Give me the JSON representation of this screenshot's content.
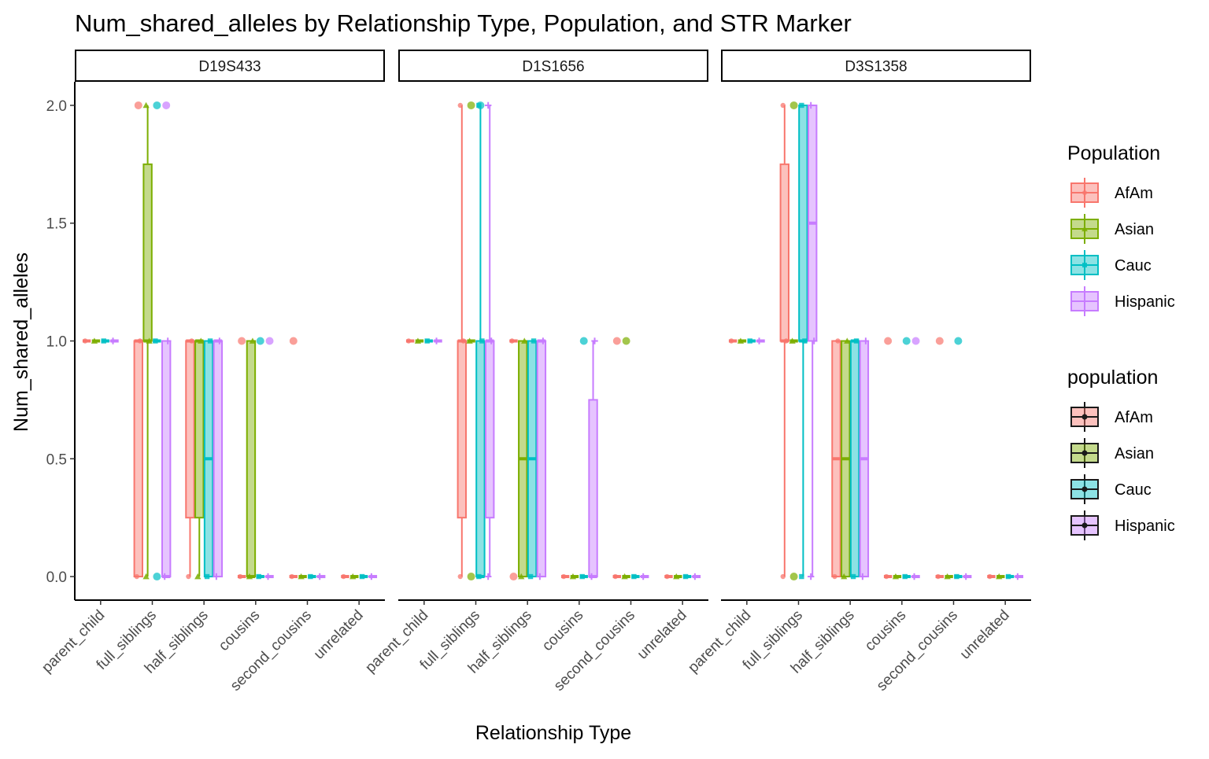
{
  "chart_data": {
    "type": "boxplot",
    "title": "Num_shared_alleles by Relationship Type, Population, and STR Marker",
    "xlabel": "Relationship Type",
    "ylabel": "Num_shared_alleles",
    "ylim": [
      -0.1,
      2.1
    ],
    "yticks": [
      0.0,
      0.5,
      1.0,
      1.5,
      2.0
    ],
    "ytick_labels": [
      "0.0",
      "0.5",
      "1.0",
      "1.5",
      "2.0"
    ],
    "categories": [
      "parent_child",
      "full_siblings",
      "half_siblings",
      "cousins",
      "second_cousins",
      "unrelated"
    ],
    "grid": false,
    "legend_placement": "right",
    "series": [
      {
        "name": "AfAm",
        "color": "#F8766D",
        "fill": "#F8766D",
        "shape": "circle"
      },
      {
        "name": "Asian",
        "color": "#7CAE00",
        "fill": "#7CAE00",
        "shape": "triangle"
      },
      {
        "name": "Cauc",
        "color": "#00BFC4",
        "fill": "#00BFC4",
        "shape": "square"
      },
      {
        "name": "Hispanic",
        "color": "#C77CFF",
        "fill": "#C77CFF",
        "shape": "plus"
      }
    ],
    "legends": [
      {
        "title": "Population",
        "labels": [
          "AfAm",
          "Asian",
          "Cauc",
          "Hispanic"
        ],
        "style": "colored"
      },
      {
        "title": "population",
        "labels": [
          "AfAm",
          "Asian",
          "Cauc",
          "Hispanic"
        ],
        "style": "black"
      }
    ],
    "panels": [
      {
        "strip": "D19S433",
        "boxes": [
          [
            [
              1,
              1,
              1,
              1,
              1
            ],
            [
              1,
              1,
              1,
              1,
              1
            ],
            [
              1,
              1,
              1,
              1,
              1
            ],
            [
              1,
              1,
              1,
              1,
              1
            ]
          ],
          [
            [
              0,
              0,
              1,
              1,
              1
            ],
            [
              0,
              1,
              1,
              1.75,
              2
            ],
            [
              1,
              1,
              1,
              1,
              1
            ],
            [
              0,
              0,
              0,
              1,
              1
            ]
          ],
          [
            [
              0,
              0.25,
              1,
              1,
              1
            ],
            [
              0,
              0.25,
              1,
              1,
              1
            ],
            [
              0,
              0,
              0.5,
              1,
              1
            ],
            [
              0,
              0,
              1,
              1,
              1
            ]
          ],
          [
            [
              0,
              0,
              0,
              0,
              0
            ],
            [
              0,
              0,
              0,
              1,
              1
            ],
            [
              0,
              0,
              0,
              0,
              0
            ],
            [
              0,
              0,
              0,
              0,
              0
            ]
          ],
          [
            [
              0,
              0,
              0,
              0,
              0
            ],
            [
              0,
              0,
              0,
              0,
              0
            ],
            [
              0,
              0,
              0,
              0,
              0
            ],
            [
              0,
              0,
              0,
              0,
              0
            ]
          ],
          [
            [
              0,
              0,
              0,
              0,
              0
            ],
            [
              0,
              0,
              0,
              0,
              0
            ],
            [
              0,
              0,
              0,
              0,
              0
            ],
            [
              0,
              0,
              0,
              0,
              0
            ]
          ]
        ],
        "outliers": [
          [
            [],
            [],
            [],
            []
          ],
          [
            [
              2
            ],
            [],
            [
              0,
              2
            ],
            [
              2
            ]
          ],
          [
            [],
            [],
            [],
            []
          ],
          [
            [
              1
            ],
            [],
            [
              1
            ],
            [
              1
            ]
          ],
          [
            [
              1
            ],
            [],
            [],
            []
          ],
          [
            [],
            [],
            [],
            []
          ]
        ]
      },
      {
        "strip": "D1S1656",
        "boxes": [
          [
            [
              1,
              1,
              1,
              1,
              1
            ],
            [
              1,
              1,
              1,
              1,
              1
            ],
            [
              1,
              1,
              1,
              1,
              1
            ],
            [
              1,
              1,
              1,
              1,
              1
            ]
          ],
          [
            [
              0,
              0.25,
              1,
              1,
              2
            ],
            [
              1,
              1,
              1,
              1,
              1
            ],
            [
              0,
              0,
              0,
              1,
              2
            ],
            [
              0,
              0.25,
              1,
              1,
              2
            ]
          ],
          [
            [
              1,
              1,
              1,
              1,
              1
            ],
            [
              0,
              0,
              0.5,
              1,
              1
            ],
            [
              0,
              0,
              0.5,
              1,
              1
            ],
            [
              0,
              0,
              1,
              1,
              1
            ]
          ],
          [
            [
              0,
              0,
              0,
              0,
              0
            ],
            [
              0,
              0,
              0,
              0,
              0
            ],
            [
              0,
              0,
              0,
              0,
              0
            ],
            [
              0,
              0,
              0,
              0.75,
              1
            ]
          ],
          [
            [
              0,
              0,
              0,
              0,
              0
            ],
            [
              0,
              0,
              0,
              0,
              0
            ],
            [
              0,
              0,
              0,
              0,
              0
            ],
            [
              0,
              0,
              0,
              0,
              0
            ]
          ],
          [
            [
              0,
              0,
              0,
              0,
              0
            ],
            [
              0,
              0,
              0,
              0,
              0
            ],
            [
              0,
              0,
              0,
              0,
              0
            ],
            [
              0,
              0,
              0,
              0,
              0
            ]
          ]
        ],
        "outliers": [
          [
            [],
            [],
            [],
            []
          ],
          [
            [],
            [
              0,
              2
            ],
            [
              2
            ],
            []
          ],
          [
            [
              0
            ],
            [],
            [],
            []
          ],
          [
            [],
            [],
            [
              1
            ],
            []
          ],
          [
            [
              1
            ],
            [
              1
            ],
            [],
            []
          ],
          [
            [],
            [],
            [],
            []
          ]
        ]
      },
      {
        "strip": "D3S1358",
        "boxes": [
          [
            [
              1,
              1,
              1,
              1,
              1
            ],
            [
              1,
              1,
              1,
              1,
              1
            ],
            [
              1,
              1,
              1,
              1,
              1
            ],
            [
              1,
              1,
              1,
              1,
              1
            ]
          ],
          [
            [
              0,
              1,
              1,
              1.75,
              2
            ],
            [
              1,
              1,
              1,
              1,
              1
            ],
            [
              0,
              1,
              1,
              2,
              2
            ],
            [
              0,
              1,
              1.5,
              2,
              2
            ]
          ],
          [
            [
              0,
              0,
              0.5,
              1,
              1
            ],
            [
              0,
              0,
              0.5,
              1,
              1
            ],
            [
              0,
              0,
              1,
              1,
              1
            ],
            [
              0,
              0,
              0.5,
              1,
              1
            ]
          ],
          [
            [
              0,
              0,
              0,
              0,
              0
            ],
            [
              0,
              0,
              0,
              0,
              0
            ],
            [
              0,
              0,
              0,
              0,
              0
            ],
            [
              0,
              0,
              0,
              0,
              0
            ]
          ],
          [
            [
              0,
              0,
              0,
              0,
              0
            ],
            [
              0,
              0,
              0,
              0,
              0
            ],
            [
              0,
              0,
              0,
              0,
              0
            ],
            [
              0,
              0,
              0,
              0,
              0
            ]
          ],
          [
            [
              0,
              0,
              0,
              0,
              0
            ],
            [
              0,
              0,
              0,
              0,
              0
            ],
            [
              0,
              0,
              0,
              0,
              0
            ],
            [
              0,
              0,
              0,
              0,
              0
            ]
          ]
        ],
        "outliers": [
          [
            [],
            [],
            [],
            []
          ],
          [
            [],
            [
              0,
              2
            ],
            [],
            []
          ],
          [
            [],
            [],
            [],
            []
          ],
          [
            [
              1
            ],
            [],
            [
              1
            ],
            [
              1
            ]
          ],
          [
            [
              1
            ],
            [],
            [
              1
            ],
            []
          ],
          [
            [],
            [],
            [],
            []
          ]
        ]
      }
    ]
  }
}
